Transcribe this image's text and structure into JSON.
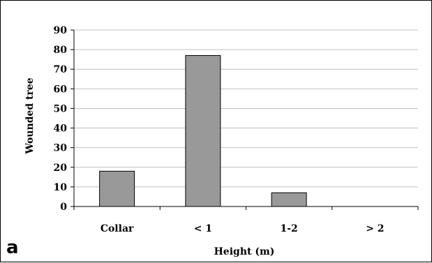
{
  "chart_data": {
    "type": "bar",
    "categories": [
      "Collar",
      "< 1",
      "1-2",
      "> 2"
    ],
    "values": [
      18,
      77,
      7,
      0
    ],
    "title": "",
    "xlabel": "Height (m)",
    "ylabel": "Wounded tree",
    "ylim": [
      0,
      90
    ],
    "yticks": [
      "0",
      "10",
      "20",
      "30",
      "40",
      "50",
      "60",
      "70",
      "80",
      "90"
    ],
    "grid": true,
    "legend": "none",
    "bar_color": "#999999",
    "grid_color": "#c0c0c0"
  },
  "panel_label": "a"
}
